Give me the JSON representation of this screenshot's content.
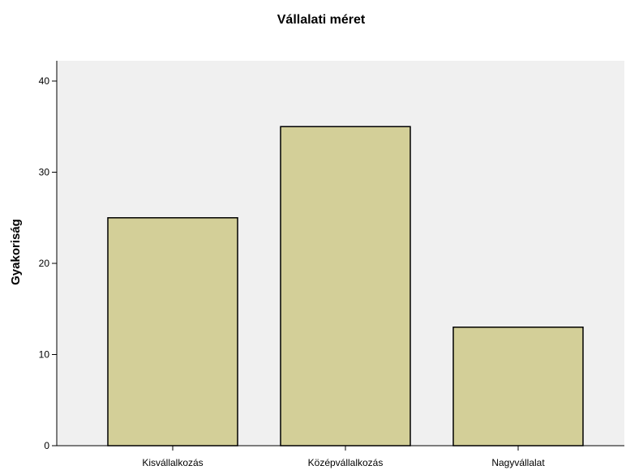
{
  "chart_data": {
    "type": "bar",
    "title": "Vállalati méret",
    "xlabel": "",
    "ylabel": "Gyakoriság",
    "categories": [
      "Kisvállalkozás",
      "Középvállalkozás",
      "Nagyvállalat"
    ],
    "values": [
      25,
      35,
      13
    ],
    "ylim": [
      0,
      42
    ],
    "yticks": [
      0,
      10,
      20,
      30,
      40
    ],
    "grid": false,
    "colors": {
      "bar_fill": "#d3cf98",
      "bar_stroke": "#000000",
      "plot_background": "#f0f0f0"
    }
  }
}
